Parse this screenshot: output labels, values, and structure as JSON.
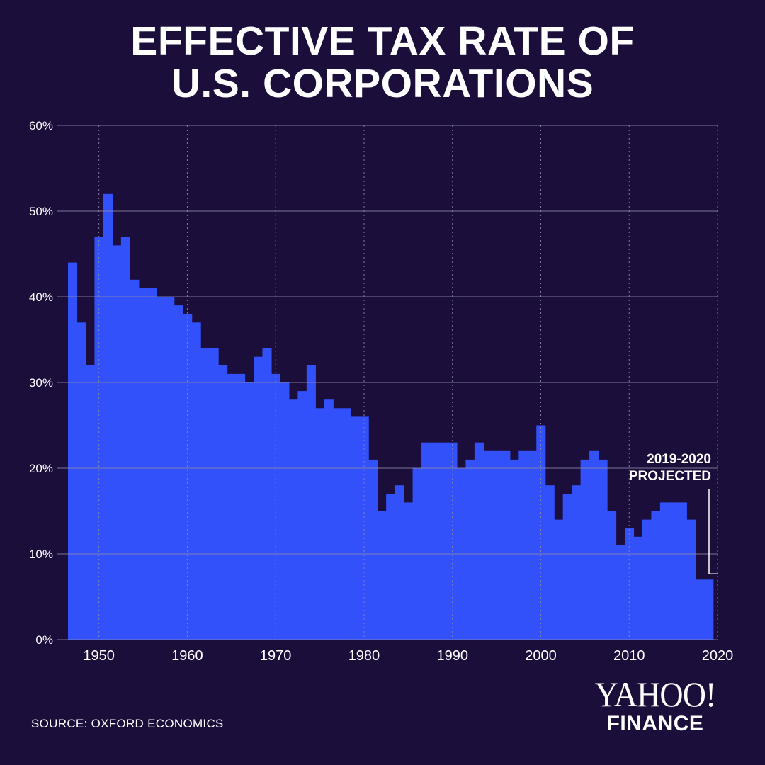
{
  "title_lines": [
    "EFFECTIVE TAX RATE OF",
    "U.S. CORPORATIONS"
  ],
  "source": "SOURCE:  OXFORD ECONOMICS",
  "logo": {
    "top": "YAHOO!",
    "bottom": "FINANCE"
  },
  "colors": {
    "background": "#1c0e3b",
    "bars": "#3251fb",
    "text": "#ffffff",
    "grid": "#8c87a8"
  },
  "chart_data": {
    "type": "bar",
    "title": "EFFECTIVE TAX RATE OF U.S. CORPORATIONS",
    "xlim": [
      1946.5,
      2020
    ],
    "ylim": [
      0,
      60
    ],
    "x_ticks": [
      1950,
      1960,
      1970,
      1980,
      1990,
      2000,
      2010,
      2020
    ],
    "x_tick_labels": [
      "1950",
      "1960",
      "1970",
      "1980",
      "1990",
      "2000",
      "2010",
      "2020"
    ],
    "y_ticks": [
      0,
      10,
      20,
      30,
      40,
      50,
      60
    ],
    "y_tick_labels": [
      "0%",
      "10%",
      "20%",
      "30%",
      "40%",
      "50%",
      "60%"
    ],
    "grid": {
      "horizontal": true,
      "vertical_dotted": true
    },
    "annotation": {
      "lines": [
        "2019-2020",
        "PROJECTED"
      ],
      "x_range": [
        2019,
        2020
      ]
    },
    "categories": [
      1947,
      1948,
      1949,
      1950,
      1951,
      1952,
      1953,
      1954,
      1955,
      1956,
      1957,
      1958,
      1959,
      1960,
      1961,
      1962,
      1963,
      1964,
      1965,
      1966,
      1967,
      1968,
      1969,
      1970,
      1971,
      1972,
      1973,
      1974,
      1975,
      1976,
      1977,
      1978,
      1979,
      1980,
      1981,
      1982,
      1983,
      1984,
      1985,
      1986,
      1987,
      1988,
      1989,
      1990,
      1991,
      1992,
      1993,
      1994,
      1995,
      1996,
      1997,
      1998,
      1999,
      2000,
      2001,
      2002,
      2003,
      2004,
      2005,
      2006,
      2007,
      2008,
      2009,
      2010,
      2011,
      2012,
      2013,
      2014,
      2015,
      2016,
      2017,
      2018,
      2019
    ],
    "values": [
      44,
      37,
      32,
      47,
      52,
      46,
      47,
      42,
      41,
      41,
      40,
      40,
      39,
      38,
      37,
      34,
      34,
      32,
      31,
      31,
      30,
      33,
      34,
      31,
      30,
      28,
      29,
      32,
      27,
      28,
      27,
      27,
      26,
      26,
      21,
      15,
      17,
      18,
      16,
      20,
      23,
      23,
      23,
      23,
      20,
      21,
      23,
      22,
      22,
      22,
      21,
      22,
      22,
      25,
      18,
      14,
      17,
      18,
      21,
      22,
      21,
      15,
      11,
      13,
      12,
      14,
      15,
      16,
      16,
      16,
      14,
      7,
      7
    ]
  }
}
